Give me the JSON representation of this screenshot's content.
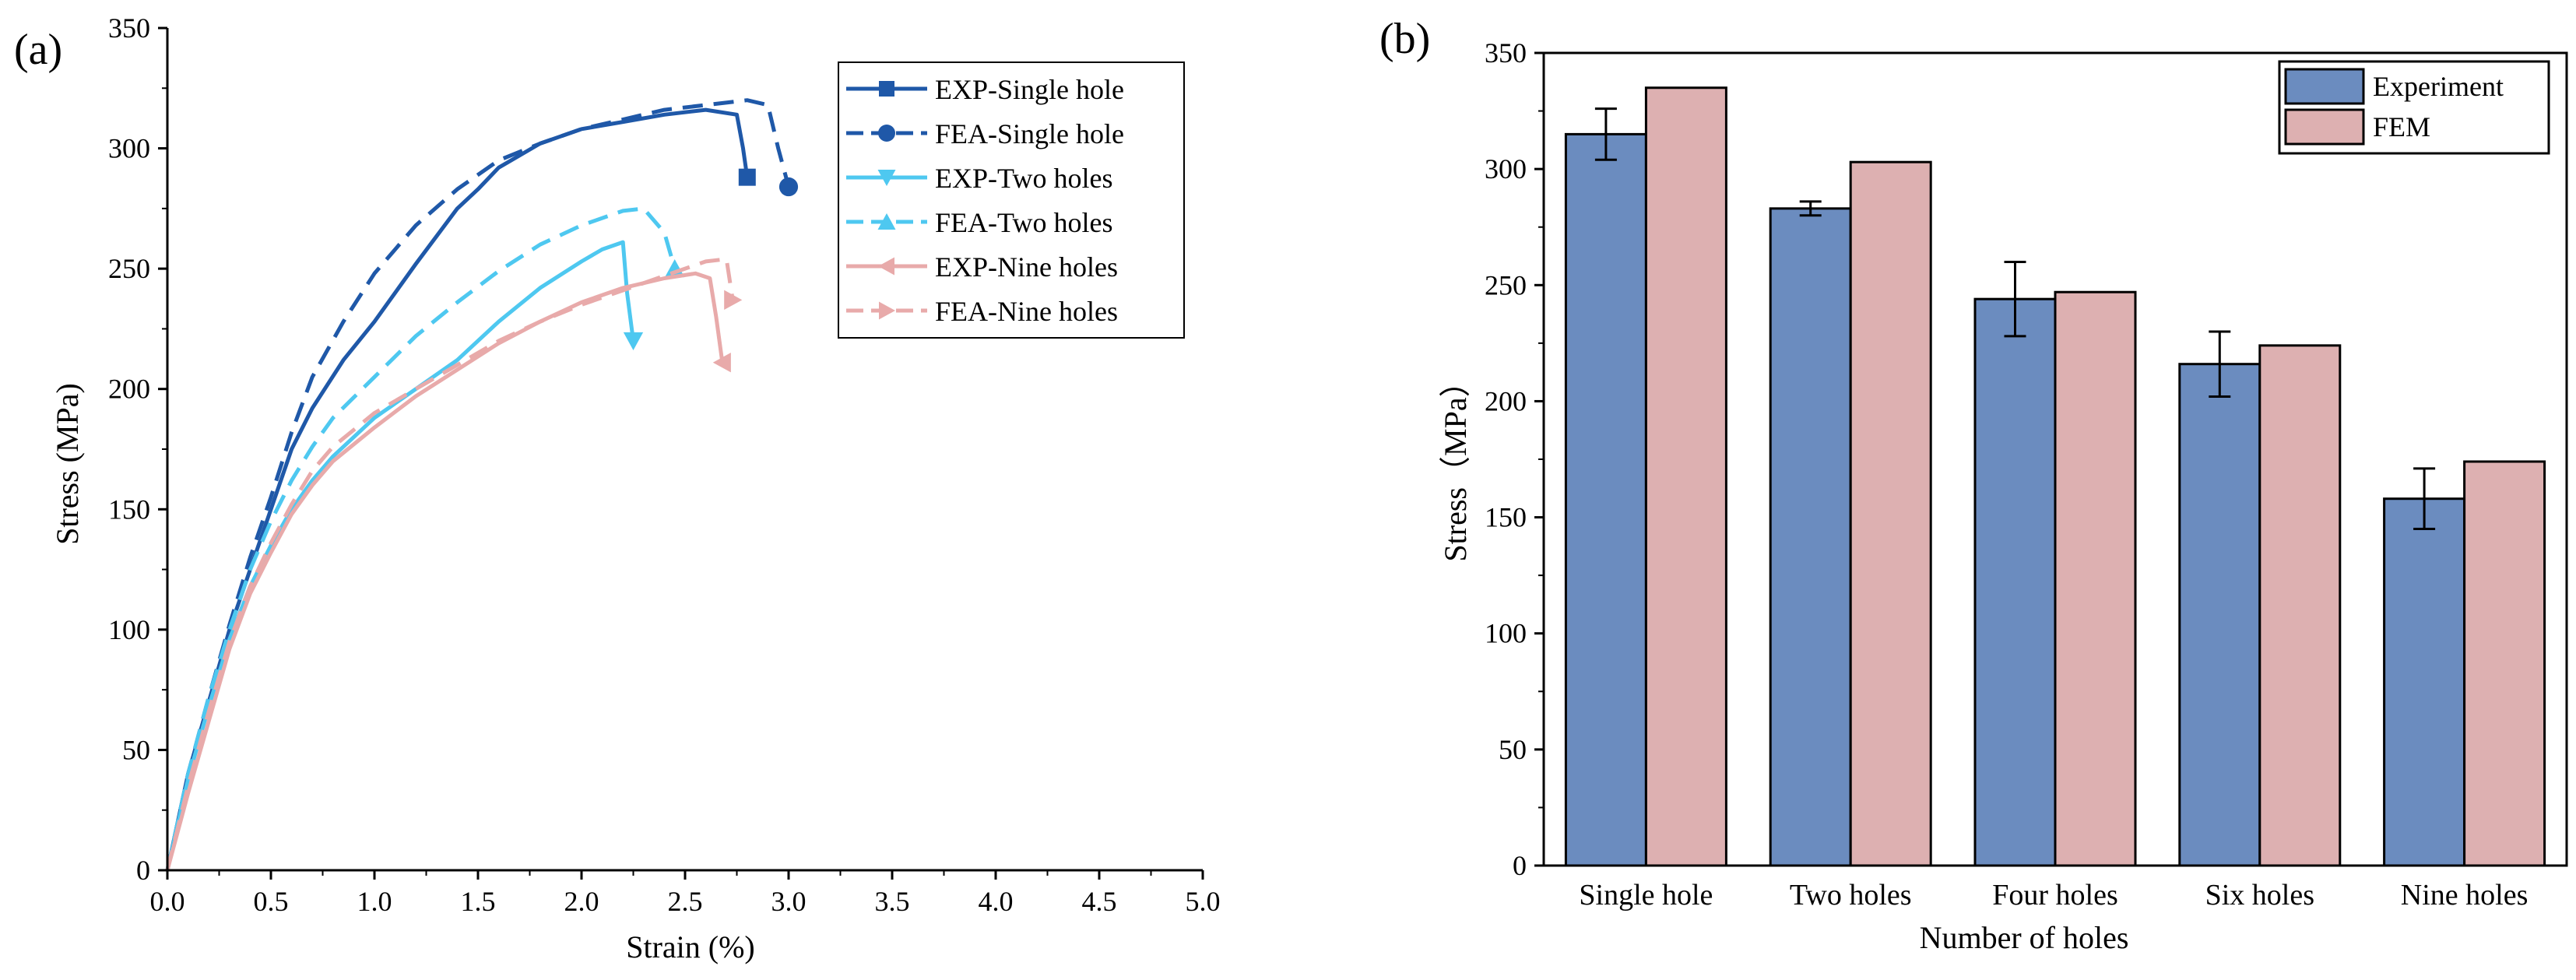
{
  "chart_data": [
    {
      "panel_label": "(a)",
      "type": "line",
      "xlabel": "Strain (%)",
      "ylabel": "Stress (MPa)",
      "xlim": [
        0,
        5
      ],
      "ylim": [
        0,
        350
      ],
      "xticks": [
        "0.0",
        "0.5",
        "1.0",
        "1.5",
        "2.0",
        "2.5",
        "3.0",
        "3.5",
        "4.0",
        "4.5",
        "5.0"
      ],
      "yticks": [
        "0",
        "50",
        "100",
        "150",
        "200",
        "250",
        "300",
        "350"
      ],
      "grid": false,
      "legend_position": "top-right",
      "series": [
        {
          "name": "EXP-Single hole",
          "color": "#1f58a8",
          "style": "solid",
          "marker": "square",
          "x": [
            0,
            0.1,
            0.2,
            0.3,
            0.4,
            0.5,
            0.6,
            0.7,
            0.85,
            1.0,
            1.2,
            1.4,
            1.5,
            1.6,
            1.8,
            2.0,
            2.2,
            2.4,
            2.6,
            2.75,
            2.78,
            2.8
          ],
          "y": [
            0,
            40,
            70,
            100,
            125,
            150,
            175,
            192,
            212,
            228,
            252,
            275,
            283,
            292,
            302,
            308,
            311,
            314,
            316,
            314,
            300,
            288
          ]
        },
        {
          "name": "FEA-Single hole",
          "color": "#1f58a8",
          "style": "dashed",
          "marker": "circle",
          "x": [
            0,
            0.1,
            0.2,
            0.3,
            0.4,
            0.5,
            0.6,
            0.7,
            0.85,
            1.0,
            1.2,
            1.4,
            1.6,
            1.8,
            2.0,
            2.2,
            2.4,
            2.6,
            2.8,
            2.9,
            2.95,
            3.0
          ],
          "y": [
            0,
            40,
            72,
            102,
            130,
            155,
            182,
            205,
            228,
            248,
            268,
            283,
            295,
            302,
            308,
            312,
            316,
            318,
            320,
            318,
            300,
            284
          ]
        },
        {
          "name": "EXP-Two holes",
          "color": "#4ec8f0",
          "style": "solid",
          "marker": "triangle-down",
          "x": [
            0,
            0.1,
            0.2,
            0.3,
            0.4,
            0.5,
            0.6,
            0.7,
            0.8,
            1.0,
            1.2,
            1.4,
            1.6,
            1.8,
            2.0,
            2.1,
            2.2,
            2.22,
            2.25
          ],
          "y": [
            0,
            38,
            68,
            96,
            118,
            135,
            150,
            162,
            172,
            188,
            200,
            212,
            228,
            242,
            253,
            258,
            261,
            240,
            220
          ]
        },
        {
          "name": "FEA-Two holes",
          "color": "#4ec8f0",
          "style": "dashed",
          "marker": "triangle-up",
          "x": [
            0,
            0.1,
            0.2,
            0.3,
            0.4,
            0.5,
            0.6,
            0.7,
            0.8,
            1.0,
            1.2,
            1.4,
            1.6,
            1.8,
            2.0,
            2.2,
            2.3,
            2.4,
            2.45
          ],
          "y": [
            0,
            40,
            72,
            100,
            125,
            145,
            162,
            176,
            188,
            205,
            222,
            236,
            249,
            260,
            268,
            274,
            275,
            265,
            250
          ]
        },
        {
          "name": "EXP-Nine holes",
          "color": "#e8aaaa",
          "style": "solid",
          "marker": "triangle-left",
          "x": [
            0,
            0.1,
            0.2,
            0.3,
            0.4,
            0.5,
            0.6,
            0.7,
            0.8,
            1.0,
            1.2,
            1.4,
            1.6,
            1.8,
            2.0,
            2.2,
            2.4,
            2.55,
            2.62,
            2.65,
            2.68
          ],
          "y": [
            0,
            32,
            62,
            92,
            115,
            132,
            148,
            160,
            170,
            184,
            197,
            208,
            219,
            228,
            236,
            242,
            246,
            248,
            246,
            230,
            211
          ]
        },
        {
          "name": "FEA-Nine holes",
          "color": "#e8aaaa",
          "style": "dashed",
          "marker": "triangle-right",
          "x": [
            0,
            0.1,
            0.2,
            0.3,
            0.4,
            0.5,
            0.6,
            0.7,
            0.8,
            1.0,
            1.2,
            1.4,
            1.6,
            1.8,
            2.0,
            2.2,
            2.4,
            2.6,
            2.7,
            2.73
          ],
          "y": [
            0,
            35,
            66,
            95,
            118,
            136,
            152,
            166,
            176,
            190,
            200,
            210,
            220,
            228,
            235,
            241,
            247,
            253,
            254,
            237
          ]
        }
      ]
    },
    {
      "panel_label": "(b)",
      "type": "bar",
      "xlabel": "Number of holes",
      "ylabel": "Stress（MPa）",
      "ylim": [
        0,
        350
      ],
      "yticks": [
        "0",
        "50",
        "100",
        "150",
        "200",
        "250",
        "300",
        "350"
      ],
      "categories": [
        "Single hole",
        "Two holes",
        "Four holes",
        "Six holes",
        "Nine holes"
      ],
      "grid": false,
      "legend_position": "top-right",
      "series": [
        {
          "name": "Experiment",
          "color": "#6b8cbf",
          "values": [
            315,
            283,
            244,
            216,
            158
          ],
          "errors": [
            11,
            3,
            16,
            14,
            13
          ]
        },
        {
          "name": "FEM",
          "color": "#ddb0b1",
          "values": [
            335,
            303,
            247,
            224,
            174
          ]
        }
      ]
    }
  ]
}
